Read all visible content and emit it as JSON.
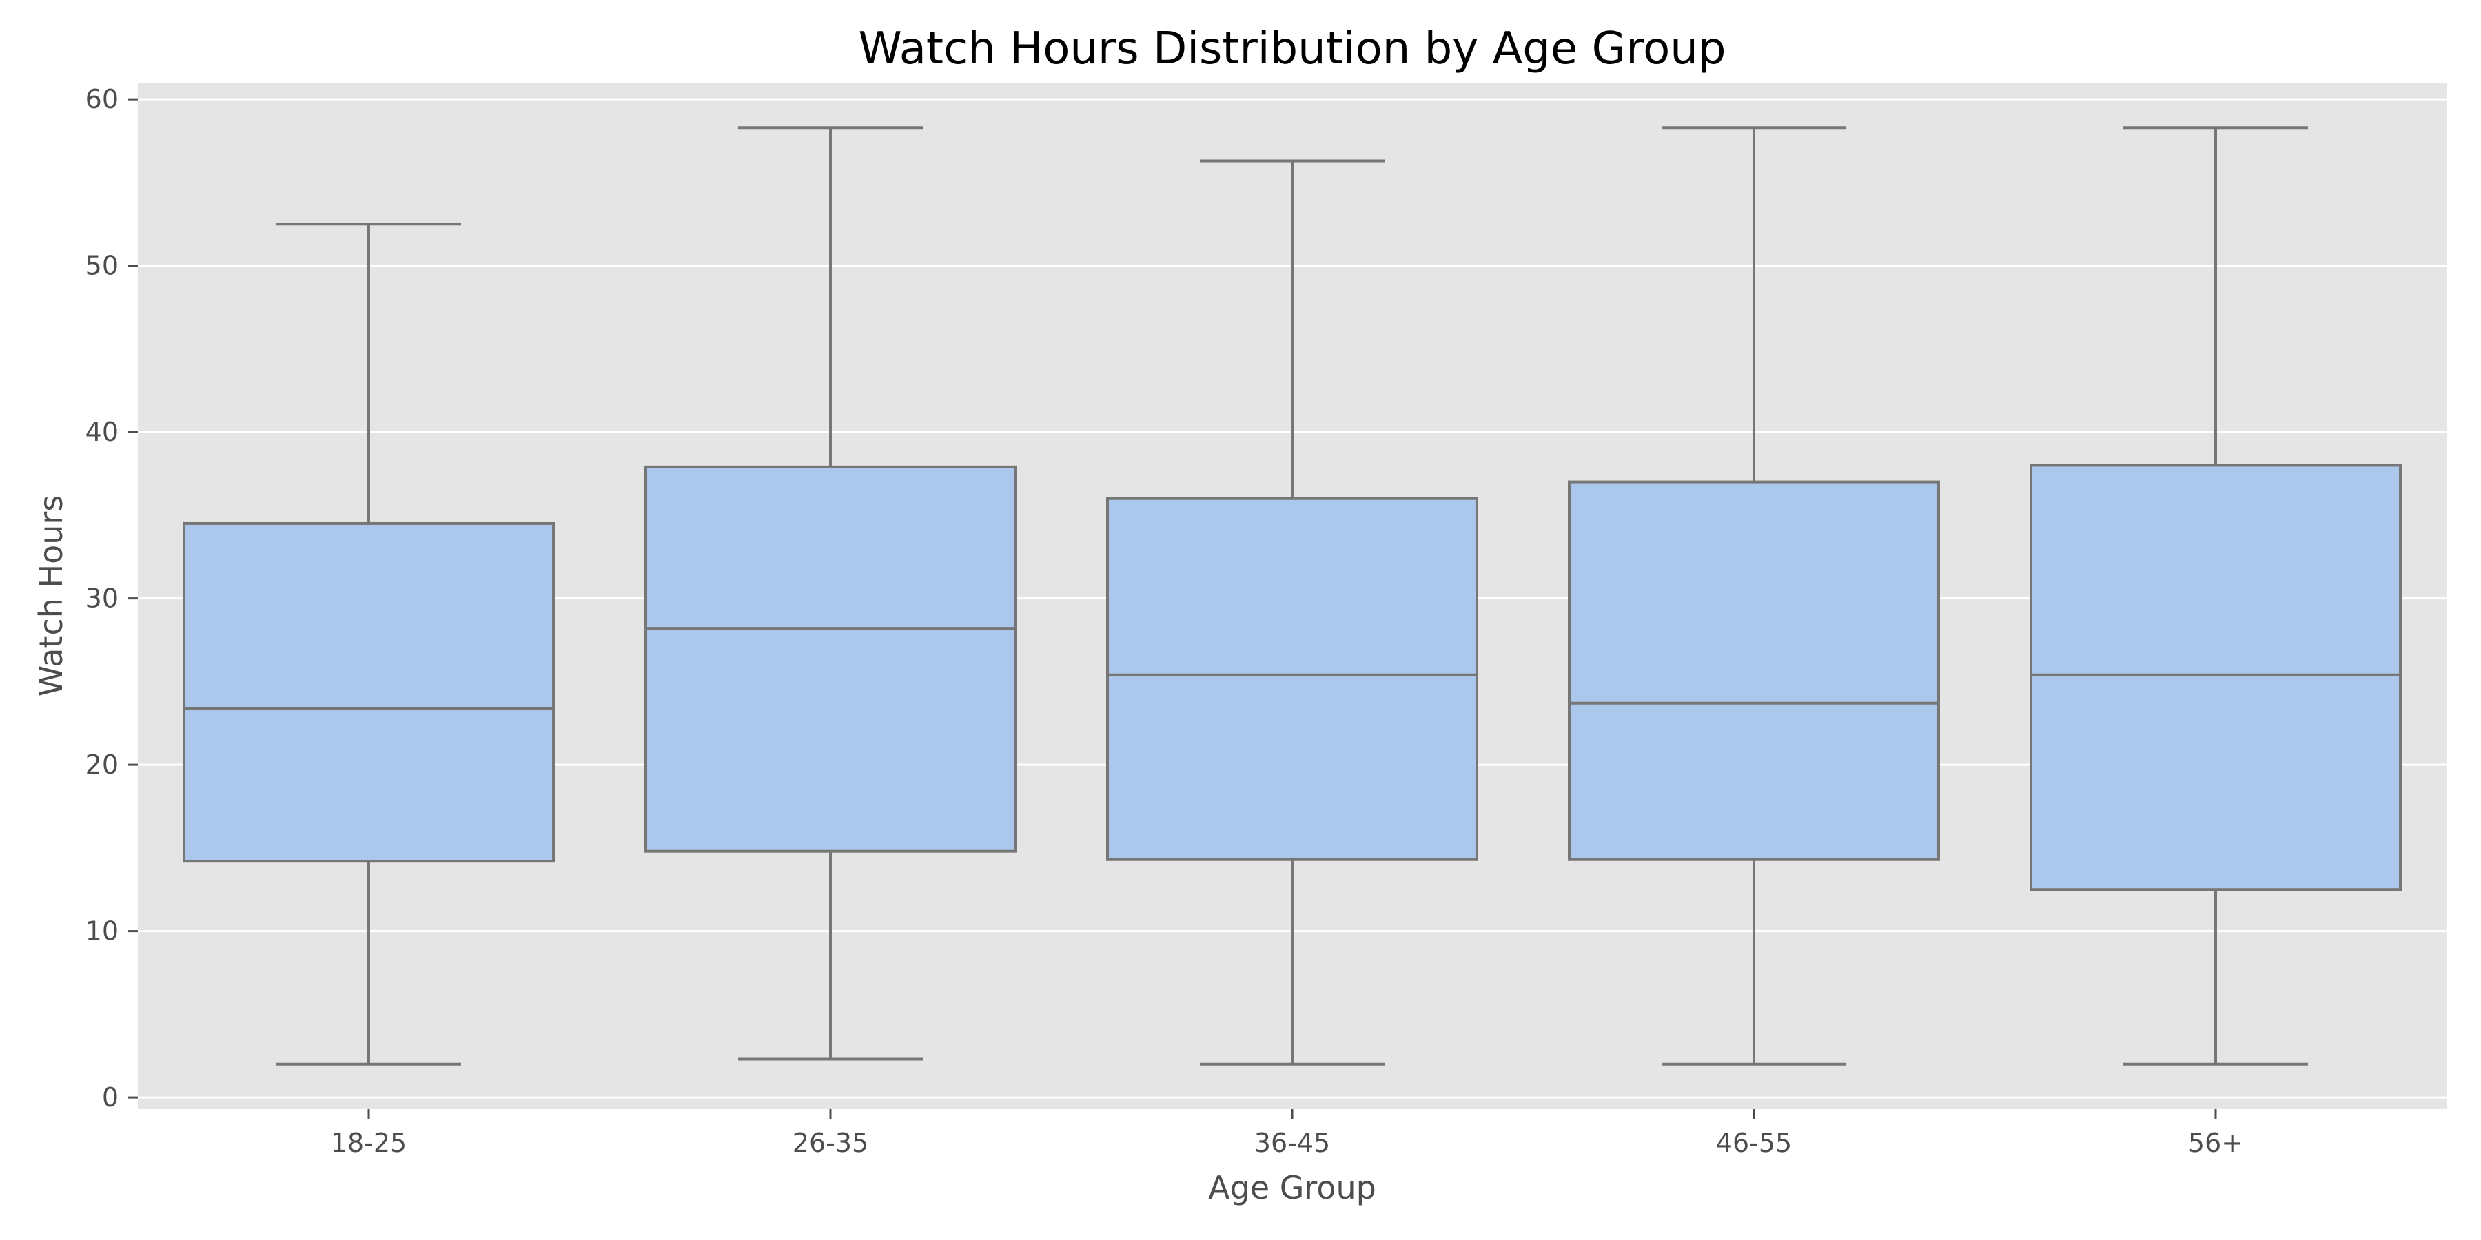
{
  "chart_data": {
    "type": "box",
    "title": "Watch Hours Distribution by Age Group",
    "xlabel": "Age Group",
    "ylabel": "Watch Hours",
    "ylim": [
      -0.7,
      61
    ],
    "yticks": [
      0,
      10,
      20,
      30,
      40,
      50,
      60
    ],
    "grid": true,
    "categories": [
      "18-25",
      "26-35",
      "36-45",
      "46-55",
      "56+"
    ],
    "boxes": [
      {
        "category": "18-25",
        "whisker_low": 2.0,
        "q1": 14.2,
        "median": 23.4,
        "q3": 34.5,
        "whisker_high": 52.5
      },
      {
        "category": "26-35",
        "whisker_low": 2.3,
        "q1": 14.8,
        "median": 28.2,
        "q3": 37.9,
        "whisker_high": 58.3
      },
      {
        "category": "36-45",
        "whisker_low": 2.0,
        "q1": 14.3,
        "median": 25.4,
        "q3": 36.0,
        "whisker_high": 56.3
      },
      {
        "category": "46-55",
        "whisker_low": 2.0,
        "q1": 14.3,
        "median": 23.7,
        "q3": 37.0,
        "whisker_high": 58.3
      },
      {
        "category": "56+",
        "whisker_low": 2.0,
        "q1": 12.5,
        "median": 25.4,
        "q3": 38.0,
        "whisker_high": 58.3
      }
    ],
    "colors": {
      "box_fill": "#abc8ec",
      "box_edge": "#767676",
      "plot_background": "#e5e5e5",
      "grid": "#ffffff"
    }
  }
}
